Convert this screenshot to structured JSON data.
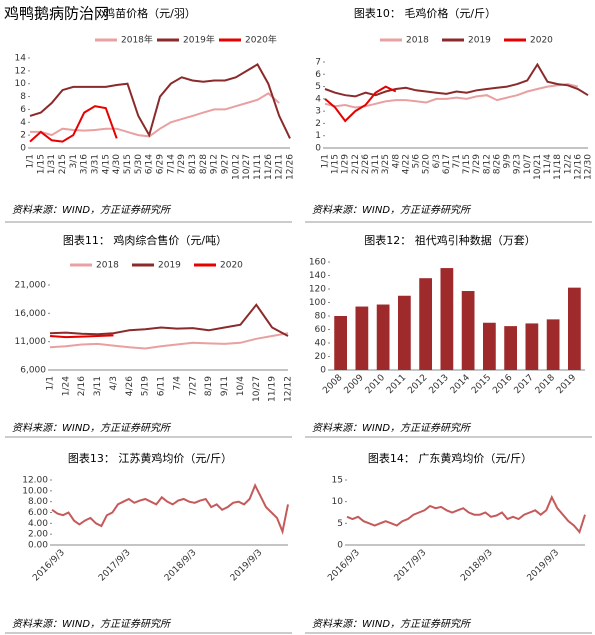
{
  "watermark": "鸡鸭鹅病防治网",
  "chart_data": [
    {
      "type": "line",
      "title": "鸡苗价格（元/羽）",
      "source": "资料来源：WIND，方正证券研究所",
      "categories": [
        "1/1",
        "1/15",
        "1/31",
        "2/15",
        "3/1",
        "3/16",
        "3/31",
        "4/15",
        "4/30",
        "5/15",
        "5/30",
        "6/14",
        "6/29",
        "7/14",
        "7/29",
        "8/13",
        "8/28",
        "9/12",
        "9/27",
        "10/12",
        "10/27",
        "11/11",
        "11/26",
        "12/11",
        "12/26"
      ],
      "series": [
        {
          "name": "2018年",
          "color": "#e8a0a0",
          "values": [
            2.5,
            2.5,
            2,
            3,
            2.8,
            2.7,
            2.8,
            3,
            3,
            2.5,
            2,
            1.8,
            3,
            4,
            4.5,
            5,
            5.5,
            6,
            6,
            6.5,
            7,
            7.5,
            8.5,
            7,
            null
          ]
        },
        {
          "name": "2019年",
          "color": "#8b2a2a",
          "values": [
            5,
            5.5,
            7,
            9,
            9.5,
            9.5,
            9.5,
            9.5,
            9.8,
            10,
            5,
            2,
            8,
            10,
            11,
            10.5,
            10.3,
            10.5,
            10.5,
            11,
            12,
            13,
            10,
            5,
            1.5
          ]
        },
        {
          "name": "2020年",
          "color": "#e60000",
          "values": [
            1,
            2.5,
            1.2,
            1,
            2,
            5.5,
            6.5,
            6.2,
            1.5,
            null,
            null,
            null,
            null,
            null,
            null,
            null,
            null,
            null,
            null,
            null,
            null,
            null,
            null,
            null,
            null
          ]
        }
      ],
      "ylim": [
        0,
        14
      ],
      "yticks": [
        0,
        2,
        4,
        6,
        8,
        10,
        12,
        14
      ]
    },
    {
      "type": "line",
      "title": "图表10：  毛鸡价格（元/斤）",
      "source": "资料来源：WIND，方正证券研究所",
      "categories": [
        "1/1",
        "1/15",
        "1/29",
        "2/12",
        "2/26",
        "3/11",
        "3/25",
        "4/8",
        "4/22",
        "5/6",
        "5/20",
        "6/3",
        "6/17",
        "7/1",
        "7/15",
        "7/29",
        "8/12",
        "8/26",
        "9/9",
        "9/23",
        "10/7",
        "10/21",
        "11/4",
        "11/18",
        "12/2",
        "12/16",
        "12/30"
      ],
      "series": [
        {
          "name": "2018",
          "color": "#e8a0a0",
          "values": [
            3.6,
            3.4,
            3.5,
            3.3,
            3.4,
            3.6,
            3.8,
            3.9,
            3.9,
            3.8,
            3.7,
            4,
            4,
            4.1,
            4,
            4.2,
            4.3,
            3.9,
            4.1,
            4.3,
            4.6,
            4.8,
            5,
            5.1,
            5.2,
            5,
            null
          ]
        },
        {
          "name": "2019",
          "color": "#8b2a2a",
          "values": [
            4.8,
            4.5,
            4.3,
            4.2,
            4.5,
            4.3,
            4.6,
            4.8,
            4.9,
            4.7,
            4.6,
            4.5,
            4.4,
            4.6,
            4.5,
            4.7,
            4.8,
            4.9,
            5,
            5.2,
            5.5,
            6.8,
            5.4,
            5.2,
            5.1,
            4.8,
            4.3
          ]
        },
        {
          "name": "2020",
          "color": "#e60000",
          "values": [
            4,
            3.3,
            2.2,
            3,
            3.5,
            4.5,
            5,
            4.6,
            null,
            null,
            null,
            null,
            null,
            null,
            null,
            null,
            null,
            null,
            null,
            null,
            null,
            null,
            null,
            null,
            null,
            null,
            null
          ]
        }
      ],
      "ylim": [
        0,
        7
      ],
      "yticks": [
        0,
        1,
        2,
        3,
        4,
        5,
        6,
        7
      ]
    },
    {
      "type": "line",
      "title": "图表11：  鸡肉综合售价（元/吨）",
      "source": "资料来源：WIND，方正证券研究所",
      "categories": [
        "1/1",
        "1/24",
        "2/16",
        "3/11",
        "4/3",
        "4/26",
        "5/19",
        "6/11",
        "7/4",
        "7/27",
        "8/19",
        "9/11",
        "10/4",
        "10/27",
        "11/19",
        "12/12"
      ],
      "series": [
        {
          "name": "2018",
          "color": "#e8a0a0",
          "values": [
            10000,
            10200,
            10500,
            10600,
            10300,
            10000,
            9800,
            10200,
            10500,
            10800,
            10700,
            10600,
            10800,
            11500,
            12000,
            12500
          ]
        },
        {
          "name": "2019",
          "color": "#8b2a2a",
          "values": [
            12500,
            12600,
            12400,
            12300,
            12500,
            13000,
            13200,
            13500,
            13300,
            13400,
            13000,
            13500,
            14000,
            17500,
            13500,
            12000
          ]
        },
        {
          "name": "2020",
          "color": "#e60000",
          "values": [
            12000,
            11800,
            11900,
            12000,
            12100,
            null,
            null,
            null,
            null,
            null,
            null,
            null,
            null,
            null,
            null,
            null
          ]
        }
      ],
      "ylim": [
        6000,
        21000
      ],
      "yticks": [
        {
          "value": 6000,
          "label": "6,000"
        },
        {
          "value": 11000,
          "label": "11,000"
        },
        {
          "value": 16000,
          "label": "16,000"
        },
        {
          "value": 21000,
          "label": "21,000"
        }
      ]
    },
    {
      "type": "bar",
      "title": "图表12：  祖代鸡引种数据（万套）",
      "source": "资料来源：WIND，方正证券研究所",
      "categories": [
        "2008",
        "2009",
        "2010",
        "2011",
        "2012",
        "2013",
        "2014",
        "2015",
        "2016",
        "2017",
        "2018",
        "2019"
      ],
      "values": [
        80,
        94,
        97,
        110,
        136,
        151,
        117,
        70,
        65,
        69,
        75,
        122
      ],
      "color": "#9e2a2b",
      "ylim": [
        0,
        160
      ],
      "yticks": [
        0,
        20,
        40,
        60,
        80,
        100,
        120,
        140,
        160
      ]
    },
    {
      "type": "line",
      "title": "图表13：  江苏黄鸡均价（元/斤）",
      "source": "资料来源：WIND，方正证券研究所",
      "categories": [
        null,
        null,
        "2016/9/3",
        null,
        null,
        null,
        null,
        null,
        null,
        null,
        null,
        null,
        null,
        null,
        "2017/9/3",
        null,
        null,
        null,
        null,
        null,
        null,
        null,
        null,
        null,
        null,
        null,
        "2018/9/3",
        null,
        null,
        null,
        null,
        null,
        null,
        null,
        null,
        null,
        null,
        null,
        "2019/9/3",
        null,
        null,
        null,
        null,
        null
      ],
      "values": [
        6.5,
        5.8,
        5.5,
        6,
        4.5,
        3.8,
        4.5,
        5,
        4,
        3.5,
        5.5,
        6,
        7.5,
        8,
        8.5,
        7.8,
        8.2,
        8.5,
        8,
        7.5,
        8.8,
        8,
        7.5,
        8.2,
        8.5,
        8,
        7.8,
        8.2,
        8.5,
        7,
        7.5,
        6.5,
        7,
        7.8,
        8,
        7.5,
        8.5,
        11,
        9,
        7,
        6,
        5,
        2.5,
        7.5
      ],
      "color": "#c55a5a",
      "ylim": [
        0,
        12
      ],
      "yticks": [
        {
          "value": 0,
          "label": "0.00"
        },
        {
          "value": 2,
          "label": "2.00"
        },
        {
          "value": 4,
          "label": "4.00"
        },
        {
          "value": 6,
          "label": "6.00"
        },
        {
          "value": 8,
          "label": "8.00"
        },
        {
          "value": 10,
          "label": "10.00"
        },
        {
          "value": 12,
          "label": "12.00"
        }
      ]
    },
    {
      "type": "line",
      "title": "图表14：  广东黄鸡均价（元/斤）",
      "source": "资料来源：WIND，方正证券研究所",
      "categories": [
        null,
        null,
        "2016/9/3",
        null,
        null,
        null,
        null,
        null,
        null,
        null,
        null,
        null,
        null,
        null,
        "2017/9/3",
        null,
        null,
        null,
        null,
        null,
        null,
        null,
        null,
        null,
        null,
        null,
        "2018/9/3",
        null,
        null,
        null,
        null,
        null,
        null,
        null,
        null,
        null,
        null,
        null,
        "2019/9/3",
        null,
        null,
        null,
        null,
        null
      ],
      "values": [
        6.5,
        6,
        6.5,
        5.5,
        5,
        4.5,
        5,
        5.5,
        5,
        4.5,
        5.5,
        6,
        7,
        7.5,
        8,
        9,
        8.5,
        8.8,
        8,
        7.5,
        8,
        8.5,
        7.5,
        7,
        7,
        7.5,
        6.5,
        6.8,
        7.5,
        6,
        6.5,
        6,
        7,
        7.5,
        8,
        7,
        8,
        11,
        8.5,
        7,
        5.5,
        4.5,
        3,
        7
      ],
      "color": "#c55a5a",
      "ylim": [
        0,
        15
      ],
      "yticks": [
        0,
        5,
        10,
        15
      ]
    }
  ]
}
